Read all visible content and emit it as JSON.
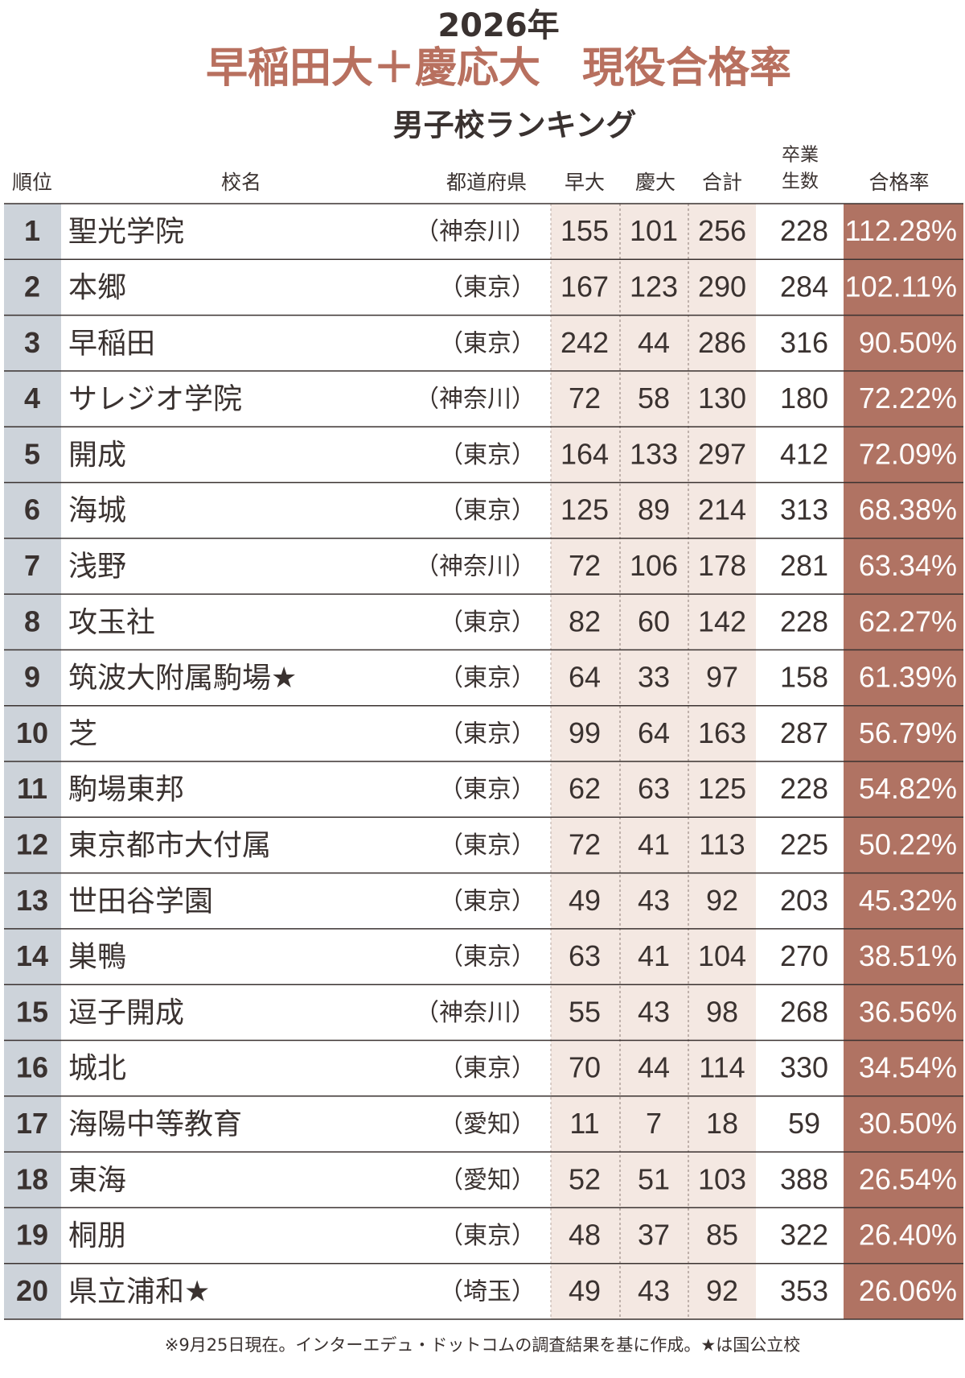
{
  "header": {
    "year": "2026年",
    "title": "早稲田大＋慶応大　現役合格率",
    "subtitle": "男子校ランキング"
  },
  "table": {
    "columns": {
      "rank": "順位",
      "name": "校名",
      "pref": "都道府県",
      "waseda": "早大",
      "keio": "慶大",
      "total": "合計",
      "grads_top": "卒業",
      "grads_bottom": "生数",
      "rate": "合格率"
    },
    "rows": [
      [
        1,
        "聖光学院",
        "（神奈川）",
        155,
        101,
        256,
        228,
        "112.28%"
      ],
      [
        2,
        "本郷",
        "（東京）",
        167,
        123,
        290,
        284,
        "102.11%"
      ],
      [
        3,
        "早稲田",
        "（東京）",
        242,
        44,
        286,
        316,
        "90.50%"
      ],
      [
        4,
        "サレジオ学院",
        "（神奈川）",
        72,
        58,
        130,
        180,
        "72.22%"
      ],
      [
        5,
        "開成",
        "（東京）",
        164,
        133,
        297,
        412,
        "72.09%"
      ],
      [
        6,
        "海城",
        "（東京）",
        125,
        89,
        214,
        313,
        "68.38%"
      ],
      [
        7,
        "浅野",
        "（神奈川）",
        72,
        106,
        178,
        281,
        "63.34%"
      ],
      [
        8,
        "攻玉社",
        "（東京）",
        82,
        60,
        142,
        228,
        "62.27%"
      ],
      [
        9,
        "筑波大附属駒場★",
        "（東京）",
        64,
        33,
        97,
        158,
        "61.39%"
      ],
      [
        10,
        "芝",
        "（東京）",
        99,
        64,
        163,
        287,
        "56.79%"
      ],
      [
        11,
        "駒場東邦",
        "（東京）",
        62,
        63,
        125,
        228,
        "54.82%"
      ],
      [
        12,
        "東京都市大付属",
        "（東京）",
        72,
        41,
        113,
        225,
        "50.22%"
      ],
      [
        13,
        "世田谷学園",
        "（東京）",
        49,
        43,
        92,
        203,
        "45.32%"
      ],
      [
        14,
        "巣鴨",
        "（東京）",
        63,
        41,
        104,
        270,
        "38.51%"
      ],
      [
        15,
        "逗子開成",
        "（神奈川）",
        55,
        43,
        98,
        268,
        "36.56%"
      ],
      [
        16,
        "城北",
        "（東京）",
        70,
        44,
        114,
        330,
        "34.54%"
      ],
      [
        17,
        "海陽中等教育",
        "（愛知）",
        11,
        7,
        18,
        59,
        "30.50%"
      ],
      [
        18,
        "東海",
        "（愛知）",
        52,
        51,
        103,
        388,
        "26.54%"
      ],
      [
        19,
        "桐朋",
        "（東京）",
        48,
        37,
        85,
        322,
        "26.40%"
      ],
      [
        20,
        "県立浦和★",
        "（埼玉）",
        49,
        43,
        92,
        353,
        "26.06%"
      ]
    ]
  },
  "footnote": "※9月25日現在。インターエデュ・ドットコムの調査結果を基に作成。★は国公立校"
}
